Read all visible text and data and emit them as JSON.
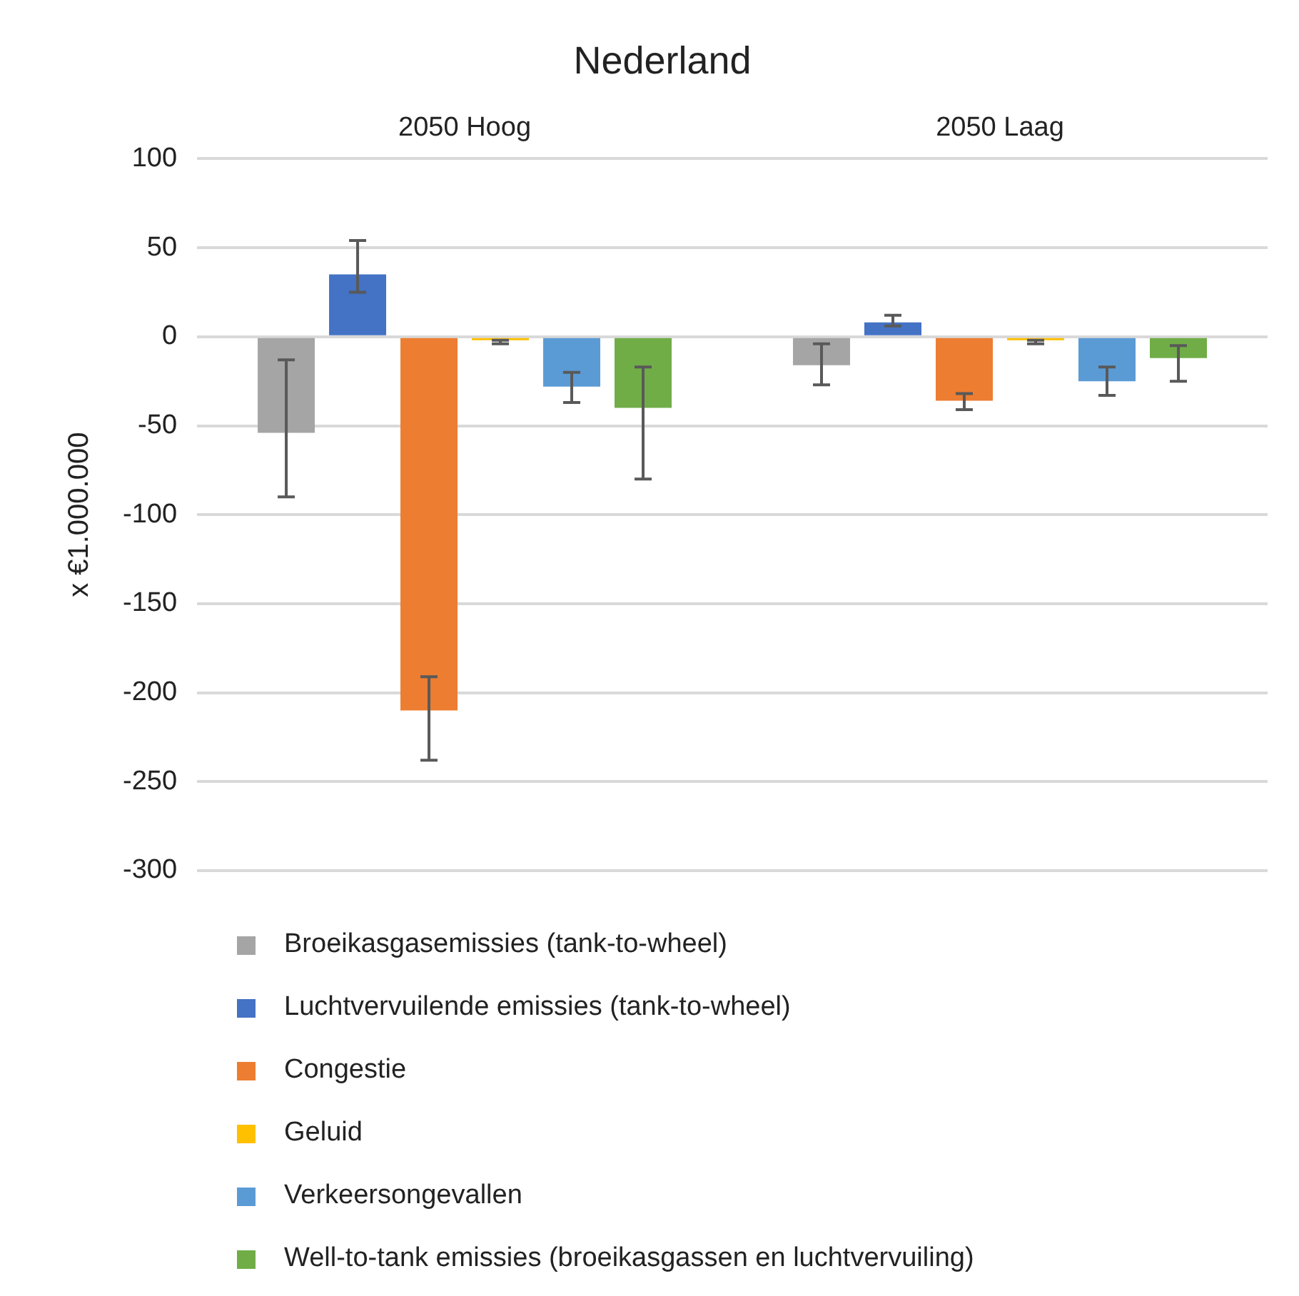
{
  "chart_data": {
    "type": "bar",
    "title": "Nederland",
    "ylabel": "x €1.000.000",
    "categories": [
      "2050 Hoog",
      "2050 Laag"
    ],
    "series": [
      {
        "name": "Broeikasgasemissies (tank-to-wheel)",
        "color": "#a5a5a5",
        "values": [
          -54,
          -16
        ],
        "errors": [
          [
            -90,
            -13
          ],
          [
            -27,
            -4
          ]
        ]
      },
      {
        "name": "Luchtvervuilende emissies (tank-to-wheel)",
        "color": "#4472c4",
        "values": [
          35,
          8
        ],
        "errors": [
          [
            25,
            54
          ],
          [
            6,
            12
          ]
        ]
      },
      {
        "name": "Congestie",
        "color": "#ed7d31",
        "values": [
          -210,
          -36
        ],
        "errors": [
          [
            -238,
            -191
          ],
          [
            -41,
            -32
          ]
        ]
      },
      {
        "name": "Geluid",
        "color": "#ffc000",
        "values": [
          -2,
          -2
        ],
        "errors": [
          [
            -4,
            -2
          ],
          [
            -4,
            -2
          ]
        ]
      },
      {
        "name": "Verkeersongevallen",
        "color": "#5b9bd5",
        "values": [
          -28,
          -25
        ],
        "errors": [
          [
            -37,
            -20
          ],
          [
            -33,
            -17
          ]
        ]
      },
      {
        "name": "Well-to-tank emissies (broeikasgassen en luchtvervuiling)",
        "color": "#70ad47",
        "values": [
          -40,
          -12
        ],
        "errors": [
          [
            -80,
            -17
          ],
          [
            -25,
            -5
          ]
        ]
      }
    ],
    "ylim": [
      -300,
      100
    ],
    "yticks": [
      -300,
      -250,
      -200,
      -150,
      -100,
      -50,
      0,
      50,
      100
    ],
    "grid": "y",
    "legend": "bottom"
  }
}
